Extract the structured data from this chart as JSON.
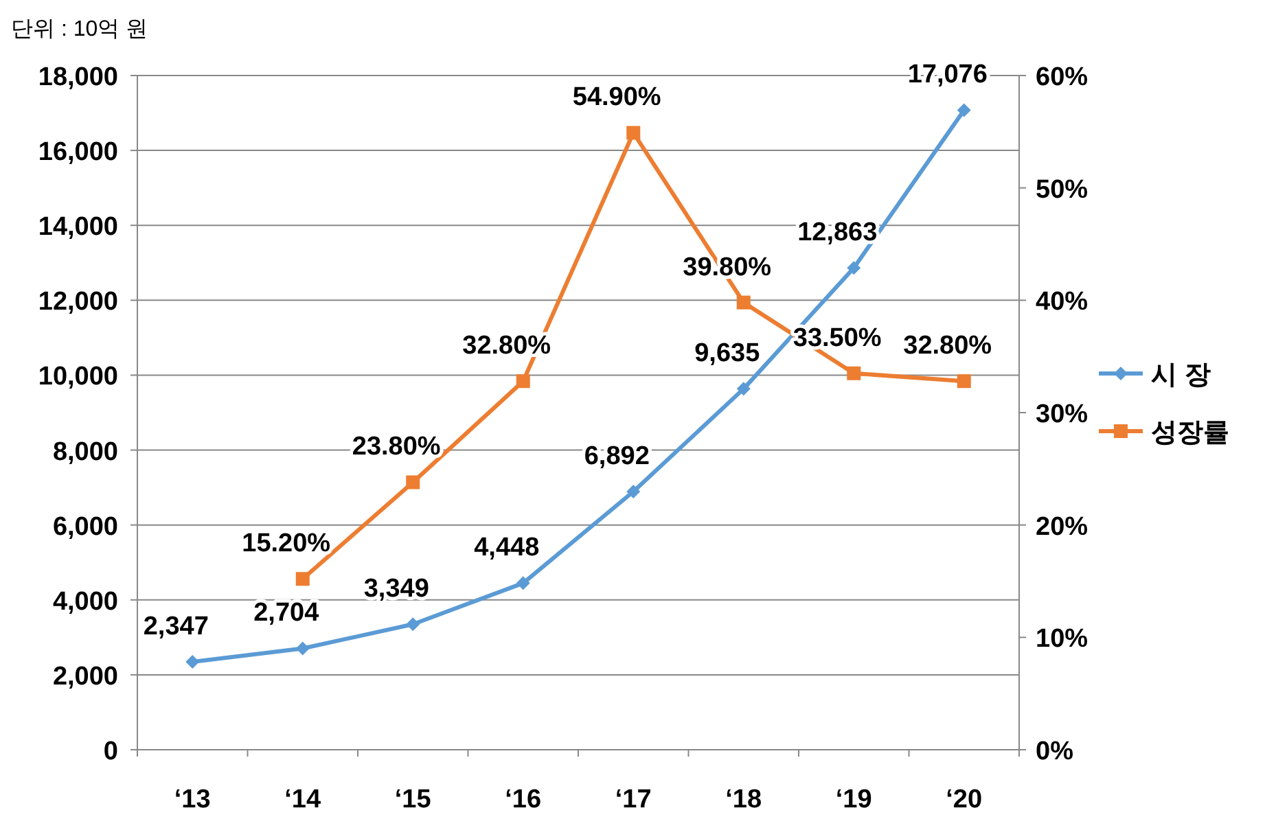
{
  "chart_data": {
    "type": "line",
    "annotations": [
      "단위 : 10억 원"
    ],
    "categories": [
      "‘13",
      "‘14",
      "‘15",
      "‘16",
      "‘17",
      "‘18",
      "‘19",
      "‘20"
    ],
    "series": [
      {
        "name": "시  장",
        "color": "#5b9bd5",
        "marker": "diamond",
        "values": [
          2347,
          2704,
          3349,
          4448,
          6892,
          9635,
          12863,
          17076
        ],
        "value_labels": [
          "2,347",
          "2,704",
          "3,349",
          "4,448",
          "6,892",
          "9,635",
          "12,863",
          "17,076"
        ]
      },
      {
        "name": "성장률",
        "color": "#ed7d31",
        "marker": "square",
        "axis": "y2",
        "values": [
          null,
          15.2,
          23.8,
          32.8,
          54.9,
          39.8,
          33.5,
          32.8
        ],
        "value_labels": [
          null,
          "15.20%",
          "23.80%",
          "32.80%",
          "54.90%",
          "39.80%",
          "33.50%",
          "32.80%"
        ]
      }
    ],
    "ylim": [
      0,
      18000
    ],
    "yticks": [
      0,
      {
        "value": 2000,
        "label": "2,000"
      },
      {
        "value": 4000,
        "label": "4,000"
      },
      {
        "value": 6000,
        "label": "6,000"
      },
      {
        "value": 8000,
        "label": "8,000"
      },
      {
        "value": 10000,
        "label": "10,000"
      },
      {
        "value": 12000,
        "label": "12,000"
      },
      {
        "value": 14000,
        "label": "14,000"
      },
      {
        "value": 16000,
        "label": "16,000"
      },
      {
        "value": 18000,
        "label": "18,000"
      }
    ],
    "y2lim": [
      0,
      60
    ],
    "y2ticks": [
      {
        "value": 0,
        "label": "0%"
      },
      {
        "value": 10,
        "label": "10%"
      },
      {
        "value": 20,
        "label": "20%"
      },
      {
        "value": 30,
        "label": "30%"
      },
      {
        "value": 40,
        "label": "40%"
      },
      {
        "value": 50,
        "label": "50%"
      },
      {
        "value": 60,
        "label": "60%"
      }
    ],
    "grid": "y",
    "legend": "right"
  }
}
